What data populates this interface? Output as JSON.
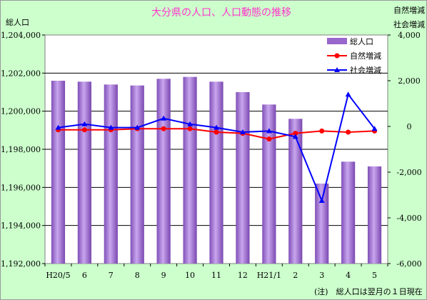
{
  "chart_data": {
    "type": "bar",
    "title": "大分県の人口、人口動態の推移",
    "ylabel_left": "総人口",
    "ylabel_right_1": "自然増減",
    "ylabel_right_2": "社会増減",
    "note": "(注)　総人口は翌月の１日現在",
    "categories": [
      "H20/5",
      "6",
      "7",
      "8",
      "9",
      "10",
      "11",
      "12",
      "H21/1",
      "2",
      "3",
      "4",
      "5"
    ],
    "ylim_left": [
      1192000,
      1204000
    ],
    "yticks_left": [
      "1,192,000",
      "1,194,000",
      "1,196,000",
      "1,198,000",
      "1,200,000",
      "1,202,000",
      "1,204,000"
    ],
    "ylim_right": [
      -6000,
      4000
    ],
    "yticks_right": [
      "-6,000",
      "-4,000",
      "-2,000",
      "0",
      "2,000",
      "4,000"
    ],
    "grid": true,
    "legend_position": "top-right",
    "colors": {
      "bar": "#9966cc",
      "natural": "#ff0000",
      "social": "#0000ff",
      "title": "#ff33cc"
    },
    "series": [
      {
        "name": "総人口",
        "axis": "left",
        "kind": "bar",
        "values": [
          1201600,
          1201550,
          1201400,
          1201350,
          1201700,
          1201800,
          1201550,
          1201000,
          1200350,
          1199600,
          1196200,
          1197350,
          1197100
        ]
      },
      {
        "name": "自然増減",
        "axis": "right",
        "kind": "line",
        "marker": "circle",
        "values": [
          -150,
          -150,
          -150,
          -100,
          -100,
          -100,
          -250,
          -300,
          -550,
          -300,
          -200,
          -250,
          -200
        ]
      },
      {
        "name": "社会増減",
        "axis": "right",
        "kind": "line",
        "marker": "triangle",
        "values": [
          -50,
          100,
          -50,
          -50,
          350,
          100,
          -50,
          -250,
          -200,
          -450,
          -3250,
          1400,
          -100
        ]
      }
    ]
  }
}
